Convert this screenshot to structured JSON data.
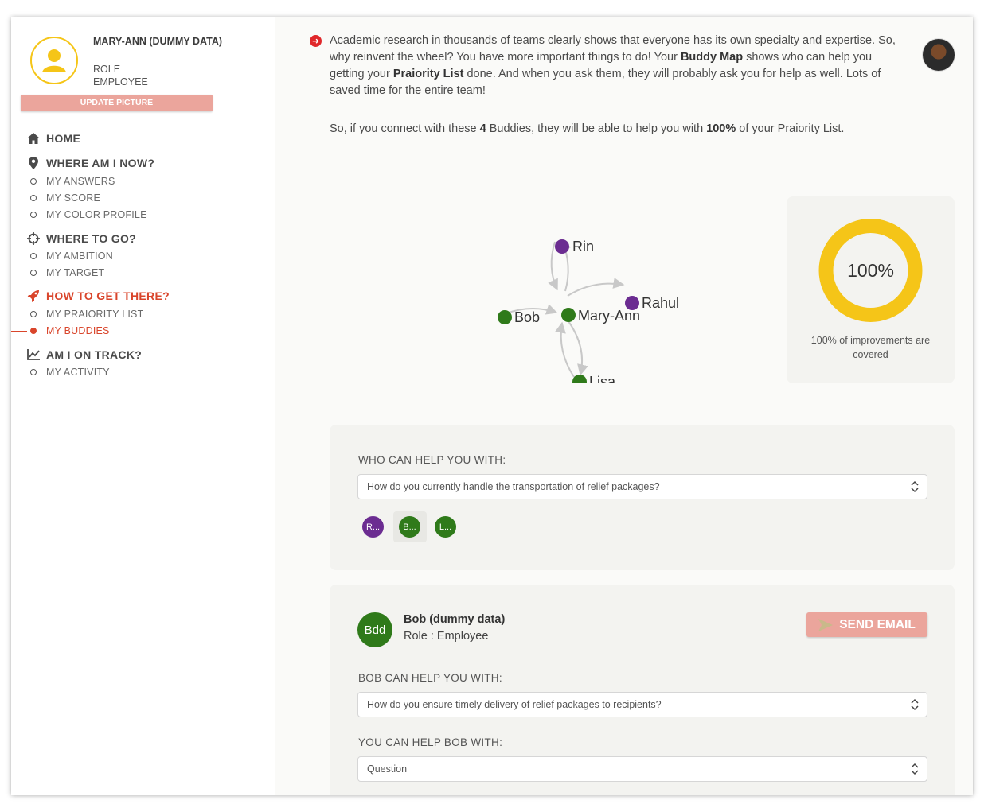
{
  "profile": {
    "name": "MARY-ANN (DUMMY DATA)",
    "role_label": "ROLE",
    "role_value": "EMPLOYEE",
    "update_picture": "UPDATE PICTURE"
  },
  "nav": {
    "home": "HOME",
    "where_am_i": "WHERE AM I NOW?",
    "my_answers": "MY ANSWERS",
    "my_score": "MY SCORE",
    "my_color_profile": "MY COLOR PROFILE",
    "where_to_go": "WHERE TO GO?",
    "my_ambition": "MY AMBITION",
    "my_target": "MY TARGET",
    "how_to_get_there": "HOW TO GET THERE?",
    "my_praiority_list": "MY PRAIORITY LIST",
    "my_buddies": "MY BUDDIES",
    "am_i_on_track": "AM I ON TRACK?",
    "my_activity": "MY ACTIVITY"
  },
  "intro": {
    "part1": "Academic research in thousands of teams clearly shows that everyone has its own specialty and expertise. So, why reinvent the wheel? You have more important things to do! Your ",
    "buddy_map": "Buddy Map",
    "part2": " shows who can help you getting your ",
    "praiority_list": "Praiority List",
    "part3": " done. And when you ask them, they will probably ask you for help as well. Lots of saved time for the entire team!"
  },
  "summary": {
    "part1": "So, if you connect with these ",
    "count": "4",
    "part2": " Buddies, they will be able to help you with ",
    "percent": "100%",
    "part3": " of your Praiority List."
  },
  "graph": {
    "center": "Mary-Ann",
    "nodes": [
      "Rin",
      "Rahul",
      "Bob",
      "Lisa"
    ],
    "colors": {
      "purple": "#6b2c91",
      "green": "#2f7a1a",
      "edge": "#c8c8c8"
    }
  },
  "coverage": {
    "percent_label": "100%",
    "fraction": 1.0,
    "caption": "100% of improvements are covered",
    "color": "#f5c518"
  },
  "who_can_help": {
    "label": "WHO CAN HELP YOU WITH:",
    "selected_question": "How do you currently handle the transportation of relief packages?",
    "chips": [
      "R...",
      "B...",
      "L..."
    ]
  },
  "buddy": {
    "initials": "Bdd",
    "name": "Bob (dummy data)",
    "role": "Role : Employee",
    "send_email": "SEND EMAIL",
    "can_help_label": "BOB CAN HELP YOU WITH:",
    "can_help_value": "How do you ensure timely delivery of relief packages to recipients?",
    "you_help_label": "YOU CAN HELP BOB WITH:",
    "you_help_value": "Question"
  }
}
